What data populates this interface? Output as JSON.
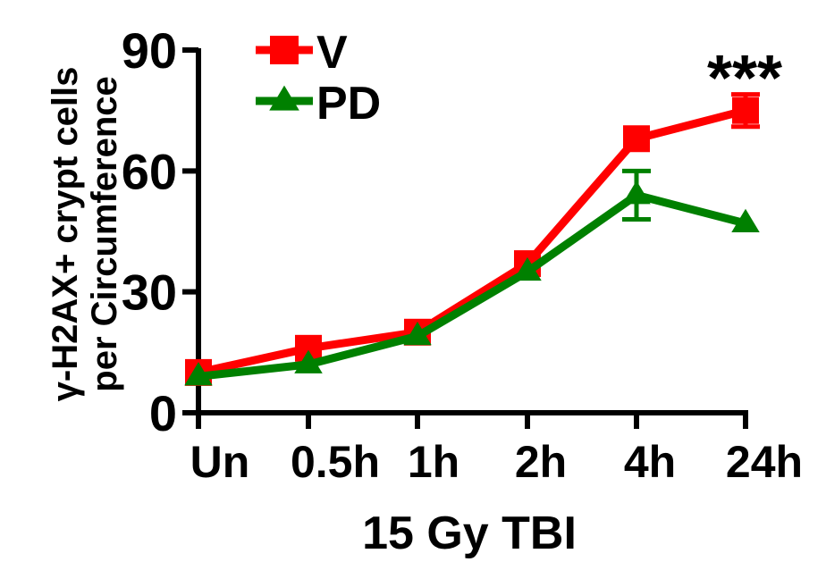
{
  "chart_data": {
    "type": "line",
    "categories": [
      "Un",
      "0.5h",
      "1h",
      "2h",
      "4h",
      "24h"
    ],
    "series": [
      {
        "name": "V",
        "values": [
          10,
          16,
          20,
          37,
          68,
          75
        ],
        "errors": [
          0,
          0,
          0,
          0,
          0,
          4
        ],
        "color": "#ff0000",
        "marker": "square"
      },
      {
        "name": "PD",
        "values": [
          9,
          12,
          19,
          35,
          54,
          47
        ],
        "errors": [
          0,
          0,
          0,
          0,
          6,
          0
        ],
        "color": "#008000",
        "marker": "triangle"
      }
    ],
    "xlabel": "15 Gy TBI",
    "ylabel_line1": "γ-H2AX+ crypt cells",
    "ylabel_line2": "per Circumference",
    "ylim": [
      0,
      90
    ],
    "yticks": [
      0,
      30,
      60,
      90
    ],
    "annotation": "***",
    "grid": false,
    "legend_position": "top-left"
  }
}
